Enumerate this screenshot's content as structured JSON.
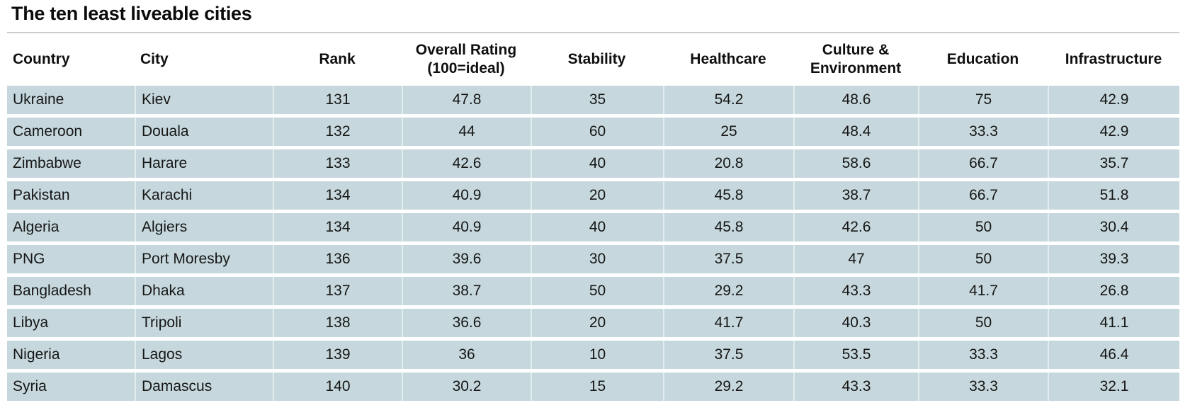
{
  "title": "The ten least liveable cities",
  "colors": {
    "row_background": "#c6d8dd",
    "text": "#161616",
    "divider_rule": "#cccccc",
    "column_separator": "rgba(255,255,255,0.5)"
  },
  "chart_data": {
    "type": "table",
    "title": "The ten least liveable cities",
    "columns": [
      {
        "key": "country",
        "label": "Country",
        "align": "left"
      },
      {
        "key": "city",
        "label": "City",
        "align": "left"
      },
      {
        "key": "rank",
        "label": "Rank",
        "align": "center"
      },
      {
        "key": "overall",
        "label": "Overall Rating\n(100=ideal)",
        "align": "center"
      },
      {
        "key": "stability",
        "label": "Stability",
        "align": "center"
      },
      {
        "key": "healthcare",
        "label": "Healthcare",
        "align": "center"
      },
      {
        "key": "culture",
        "label": "Culture &\nEnvironment",
        "align": "center"
      },
      {
        "key": "education",
        "label": "Education",
        "align": "center"
      },
      {
        "key": "infrastructure",
        "label": "Infrastructure",
        "align": "center"
      }
    ],
    "rows": [
      [
        "Ukraine",
        "Kiev",
        "131",
        "47.8",
        "35",
        "54.2",
        "48.6",
        "75",
        "42.9"
      ],
      [
        "Cameroon",
        "Douala",
        "132",
        "44",
        "60",
        "25",
        "48.4",
        "33.3",
        "42.9"
      ],
      [
        "Zimbabwe",
        "Harare",
        "133",
        "42.6",
        "40",
        "20.8",
        "58.6",
        "66.7",
        "35.7"
      ],
      [
        "Pakistan",
        "Karachi",
        "134",
        "40.9",
        "20",
        "45.8",
        "38.7",
        "66.7",
        "51.8"
      ],
      [
        "Algeria",
        "Algiers",
        "134",
        "40.9",
        "40",
        "45.8",
        "42.6",
        "50",
        "30.4"
      ],
      [
        "PNG",
        "Port Moresby",
        "136",
        "39.6",
        "30",
        "37.5",
        "47",
        "50",
        "39.3"
      ],
      [
        "Bangladesh",
        "Dhaka",
        "137",
        "38.7",
        "50",
        "29.2",
        "43.3",
        "41.7",
        "26.8"
      ],
      [
        "Libya",
        "Tripoli",
        "138",
        "36.6",
        "20",
        "41.7",
        "40.3",
        "50",
        "41.1"
      ],
      [
        "Nigeria",
        "Lagos",
        "139",
        "36",
        "10",
        "37.5",
        "53.5",
        "33.3",
        "46.4"
      ],
      [
        "Syria",
        "Damascus",
        "140",
        "30.2",
        "15",
        "29.2",
        "43.3",
        "33.3",
        "32.1"
      ]
    ]
  }
}
